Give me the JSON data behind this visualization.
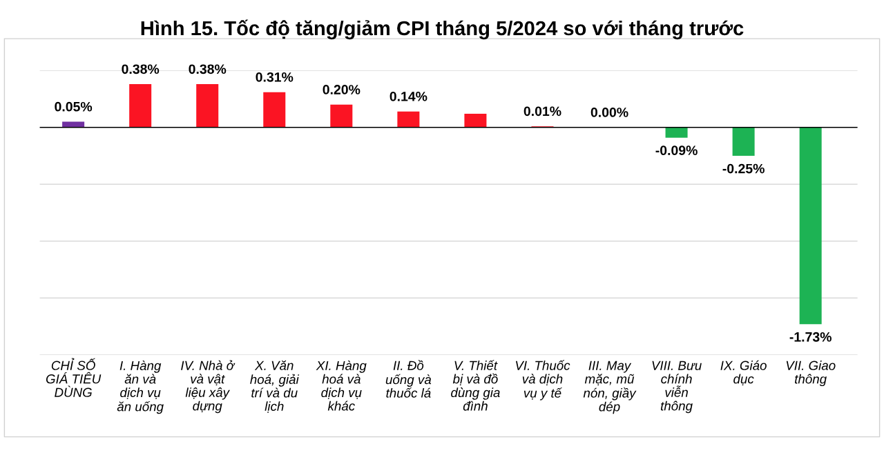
{
  "chart_data": {
    "type": "bar",
    "title": "Hình 15. Tốc độ tăng/giảm CPI tháng 5/2024 so với tháng trước",
    "categories": [
      "CHỈ SỐ\nGIÁ TIÊU\nDÙNG",
      "I. Hàng\năn và\ndịch vụ\năn uống",
      "IV. Nhà ở\nvà vật\nliệu xây\ndựng",
      "X. Văn\nhoá, giải\ntrí và du\nlịch",
      "XI. Hàng\nhoá và\ndịch vụ\nkhác",
      "II. Đồ\nuống và\nthuốc lá",
      "V. Thiết\nbị và đồ\ndùng gia\nđình",
      "VI. Thuốc\nvà dịch\nvụ y tế",
      "III. May\nmặc, mũ\nnón, giầy\ndép",
      "VIII. Bưu\nchính\nviễn\nthông",
      "IX. Giáo\ndục",
      "VII. Giao\nthông"
    ],
    "values": [
      0.05,
      0.38,
      0.38,
      0.31,
      0.2,
      0.14,
      0.12,
      0.01,
      0.0,
      -0.09,
      -0.25,
      -1.73
    ],
    "value_labels": [
      "0.05%",
      "0.38%",
      "0.38%",
      "0.31%",
      "0.20%",
      "0.14%",
      null,
      "0.01%",
      "0.00%",
      "-0.09%",
      "-0.25%",
      "-1.73%"
    ],
    "colors": [
      "#7030a0",
      "#fb1423",
      "#fb1423",
      "#fb1423",
      "#fb1423",
      "#fb1423",
      "#fb1423",
      "#fb1423",
      "#fb1423",
      "#1db354",
      "#1db354",
      "#1db354"
    ],
    "ylim": [
      -2.0,
      0.5
    ],
    "yticks": [
      {
        "value": -2.0,
        "label": null
      },
      {
        "value": -1.5,
        "label": null
      },
      {
        "value": -1.0,
        "label": null
      },
      {
        "value": -0.5,
        "label": null
      },
      {
        "value": 0.0,
        "label": null
      },
      {
        "value": 0.5,
        "label": null
      }
    ],
    "grid": "y",
    "legend": false,
    "tick_labels": "x"
  }
}
